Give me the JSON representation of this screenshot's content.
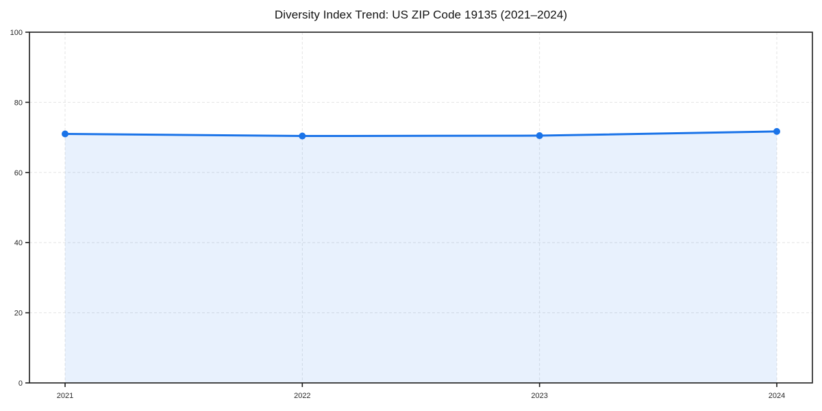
{
  "page": {
    "background_color": "#ffffff"
  },
  "chart_data": {
    "type": "area",
    "title": "Diversity Index Trend: US ZIP Code 19135 (2021–2024)",
    "xlabel": "",
    "ylabel": "",
    "x": [
      2021,
      2022,
      2023,
      2024
    ],
    "xtick_labels": [
      "2021",
      "2022",
      "2023",
      "2024"
    ],
    "series": [
      {
        "name": "Diversity Index",
        "values": [
          71.0,
          70.4,
          70.5,
          71.7
        ]
      }
    ],
    "ylim": [
      0,
      100
    ],
    "yticks": [
      0,
      20,
      40,
      60,
      80,
      100
    ],
    "ytick_labels": [
      "0",
      "20",
      "40",
      "60",
      "80",
      "100"
    ],
    "grid": true,
    "grid_style": "dashed",
    "legend_position": "none",
    "line_color": "#1a73e8",
    "marker_color": "#1a73e8",
    "fill_color": "#1a73e8",
    "fill_opacity": 0.1,
    "grid_color": "#e3e3e3",
    "axis_color": "#1a1a1a",
    "tick_label_color": "#262626",
    "title_color": "#111111"
  }
}
